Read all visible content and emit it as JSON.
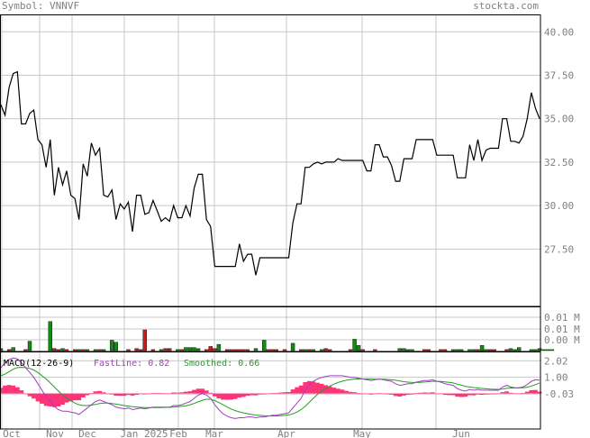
{
  "header": {
    "symbol_label": "Symbol: VNNVF",
    "site": "stockta.com"
  },
  "colors": {
    "background": "#ffffff",
    "grid": "#c8c8c8",
    "frame": "#000000",
    "text": "#808080",
    "price_line": "#000000",
    "volume_up": "#138a13",
    "volume_down": "#cc1a1a",
    "macd_hist": "#ff3377",
    "fast_line": "#a040c0",
    "smoothed_line": "#20a020"
  },
  "chart_data": [
    {
      "type": "line",
      "name": "price",
      "x_ticks": [
        "Oct",
        "Nov",
        "Dec",
        "Jan 2025",
        "Feb",
        "Mar",
        "Apr",
        "May",
        "Jun"
      ],
      "y_ticks": [
        "40.00",
        "37.50",
        "35.00",
        "32.50",
        "30.00",
        "27.50"
      ],
      "ylim": [
        24.2,
        41.0
      ],
      "grid": true,
      "values": [
        35.8,
        35.2,
        36.8,
        37.6,
        37.7,
        34.7,
        34.7,
        35.3,
        35.5,
        33.8,
        33.5,
        32.2,
        33.8,
        30.6,
        32.2,
        31.2,
        32.0,
        30.6,
        30.4,
        29.2,
        32.4,
        31.7,
        33.6,
        32.9,
        33.3,
        30.6,
        30.5,
        30.9,
        29.2,
        30.1,
        29.8,
        30.2,
        28.5,
        30.6,
        30.6,
        29.5,
        29.6,
        30.3,
        29.7,
        29.1,
        29.3,
        29.1,
        30.0,
        29.3,
        29.3,
        30.0,
        29.4,
        31.0,
        31.8,
        31.8,
        29.2,
        28.8,
        26.5,
        26.5,
        26.5,
        26.5,
        26.5,
        26.5,
        27.8,
        26.8,
        27.2,
        27.2,
        26.0,
        27.0,
        27.0,
        27.0,
        27.0,
        27.0,
        27.0,
        27.0,
        27.0,
        29.0,
        30.1,
        30.1,
        32.2,
        32.2,
        32.4,
        32.5,
        32.4,
        32.5,
        32.5,
        32.5,
        32.7,
        32.6,
        32.6,
        32.6,
        32.6,
        32.6,
        32.6,
        32.0,
        32.0,
        33.5,
        33.5,
        32.8,
        32.8,
        32.3,
        31.4,
        31.4,
        32.7,
        32.7,
        32.7,
        33.8,
        33.8,
        33.8,
        33.8,
        33.8,
        32.9,
        32.9,
        32.9,
        32.9,
        32.9,
        31.6,
        31.6,
        31.6,
        33.5,
        32.6,
        33.8,
        32.6,
        33.2,
        33.3,
        33.3,
        33.3,
        35.0,
        35.0,
        33.7,
        33.7,
        33.6,
        34.0,
        35.0,
        36.5,
        35.6,
        35.0
      ]
    },
    {
      "type": "bar",
      "name": "volume",
      "y_ticks": [
        "0.01 M",
        "0.01 M",
        "0.00 M"
      ],
      "ylim": [
        0,
        0.04
      ],
      "values": [
        0.002,
        0,
        0.001,
        0.003,
        0,
        0,
        0.001,
        0.009,
        0,
        0,
        0,
        0,
        0.028,
        0.002,
        0.001,
        0.002,
        0.001,
        0,
        0.001,
        0.001,
        0.001,
        0.001,
        0,
        0.001,
        0.001,
        0.001,
        0,
        0.01,
        0.008,
        0,
        0,
        0.001,
        0,
        0.002,
        0.001,
        0.02,
        0,
        0.001,
        0,
        0.001,
        0.002,
        0.002,
        0,
        0.001,
        0.001,
        0.003,
        0.003,
        0.003,
        0.002,
        0,
        0.001,
        0.004,
        0.002,
        0.006,
        0,
        0.001,
        0.001,
        0.001,
        0.001,
        0.001,
        0.001,
        0,
        0.002,
        0,
        0.01,
        0.001,
        0.001,
        0.001,
        0,
        0.001,
        0,
        0.007,
        0,
        0.001,
        0.001,
        0.001,
        0.001,
        0,
        0.001,
        0.002,
        0.001,
        0,
        0,
        0,
        0,
        0.001,
        0.011,
        0.005,
        0.001,
        0,
        0,
        0.001,
        0,
        0,
        0,
        0,
        0,
        0.002,
        0.002,
        0.001,
        0.001,
        0,
        0,
        0.001,
        0.001,
        0,
        0,
        0.001,
        0.001,
        0,
        0.001,
        0.001,
        0.001,
        0,
        0.001,
        0.001,
        0.001,
        0.005,
        0.001,
        0.001,
        0.001,
        0,
        0,
        0.001,
        0.002,
        0.001,
        0.003,
        0,
        0,
        0.001,
        0.001,
        0.002,
        0.001,
        0.001,
        0.001
      ],
      "up": [
        1,
        0,
        0,
        1,
        0,
        0,
        0,
        1,
        0,
        0,
        0,
        0,
        1,
        0,
        0,
        1,
        0,
        0,
        0,
        1,
        0,
        1,
        0,
        1,
        0,
        1,
        0,
        1,
        1,
        0,
        0,
        0,
        0,
        0,
        0,
        0,
        0,
        0,
        0,
        1,
        0,
        0,
        0,
        1,
        0,
        1,
        1,
        1,
        1,
        0,
        0,
        0,
        0,
        1,
        0,
        0,
        0,
        0,
        0,
        0,
        0,
        0,
        1,
        0,
        1,
        0,
        0,
        0,
        0,
        0,
        0,
        1,
        0,
        0,
        1,
        0,
        1,
        0,
        1,
        0,
        0,
        0,
        0,
        0,
        0,
        0,
        1,
        1,
        0,
        0,
        0,
        0,
        0,
        0,
        0,
        0,
        0,
        1,
        1,
        1,
        1,
        0,
        0,
        0,
        0,
        0,
        0,
        0,
        0,
        0,
        1,
        1,
        1,
        0,
        1,
        1,
        0,
        1,
        1,
        0,
        0,
        0,
        0,
        0,
        1,
        1,
        1,
        0,
        0,
        1,
        1,
        1,
        1,
        1,
        1
      ]
    },
    {
      "type": "line",
      "name": "macd",
      "title": "MACD(12-26-9)",
      "fast_label": "FastLine: 0.82",
      "smoothed_label": "Smoothed: 0.66",
      "y_ticks": [
        "2.02",
        "1.00",
        "-0.03"
      ],
      "ylim": [
        -2.2,
        2.6
      ],
      "fast": [
        1.6,
        1.9,
        2.1,
        2.2,
        2.15,
        1.9,
        1.6,
        1.3,
        1.0,
        0.6,
        0.2,
        -0.2,
        -0.5,
        -0.8,
        -1.0,
        -1.1,
        -1.1,
        -1.15,
        -1.2,
        -1.3,
        -1.1,
        -0.9,
        -0.7,
        -0.5,
        -0.4,
        -0.5,
        -0.6,
        -0.7,
        -0.85,
        -0.9,
        -0.95,
        -0.9,
        -1.0,
        -0.95,
        -0.9,
        -0.95,
        -0.9,
        -0.85,
        -0.85,
        -0.85,
        -0.85,
        -0.85,
        -0.75,
        -0.75,
        -0.7,
        -0.6,
        -0.5,
        -0.3,
        -0.1,
        0.0,
        -0.1,
        -0.3,
        -0.7,
        -1.0,
        -1.25,
        -1.4,
        -1.5,
        -1.55,
        -1.5,
        -1.5,
        -1.45,
        -1.45,
        -1.5,
        -1.45,
        -1.45,
        -1.4,
        -1.35,
        -1.35,
        -1.3,
        -1.25,
        -1.2,
        -0.9,
        -0.6,
        -0.3,
        0.2,
        0.55,
        0.75,
        0.9,
        1.0,
        1.05,
        1.1,
        1.1,
        1.1,
        1.1,
        1.05,
        1.0,
        1.0,
        0.95,
        0.9,
        0.85,
        0.8,
        0.85,
        0.9,
        0.85,
        0.8,
        0.75,
        0.6,
        0.5,
        0.55,
        0.6,
        0.6,
        0.7,
        0.75,
        0.8,
        0.8,
        0.85,
        0.75,
        0.7,
        0.6,
        0.55,
        0.5,
        0.3,
        0.2,
        0.15,
        0.25,
        0.2,
        0.25,
        0.2,
        0.2,
        0.2,
        0.2,
        0.2,
        0.4,
        0.5,
        0.4,
        0.35,
        0.35,
        0.4,
        0.55,
        0.75,
        0.85,
        0.82
      ],
      "smoothed": [
        1.1,
        1.2,
        1.35,
        1.5,
        1.6,
        1.62,
        1.6,
        1.55,
        1.45,
        1.3,
        1.1,
        0.9,
        0.65,
        0.4,
        0.15,
        -0.1,
        -0.3,
        -0.45,
        -0.6,
        -0.7,
        -0.75,
        -0.75,
        -0.72,
        -0.68,
        -0.62,
        -0.6,
        -0.6,
        -0.62,
        -0.66,
        -0.7,
        -0.75,
        -0.78,
        -0.82,
        -0.84,
        -0.86,
        -0.88,
        -0.88,
        -0.88,
        -0.88,
        -0.87,
        -0.86,
        -0.86,
        -0.84,
        -0.82,
        -0.8,
        -0.76,
        -0.7,
        -0.62,
        -0.52,
        -0.42,
        -0.36,
        -0.36,
        -0.45,
        -0.56,
        -0.7,
        -0.84,
        -0.96,
        -1.06,
        -1.14,
        -1.2,
        -1.25,
        -1.3,
        -1.34,
        -1.36,
        -1.38,
        -1.39,
        -1.39,
        -1.39,
        -1.38,
        -1.36,
        -1.33,
        -1.26,
        -1.15,
        -1.0,
        -0.8,
        -0.55,
        -0.3,
        -0.05,
        0.15,
        0.32,
        0.46,
        0.58,
        0.68,
        0.76,
        0.82,
        0.86,
        0.89,
        0.9,
        0.9,
        0.9,
        0.89,
        0.88,
        0.88,
        0.88,
        0.87,
        0.85,
        0.82,
        0.77,
        0.73,
        0.7,
        0.68,
        0.68,
        0.69,
        0.71,
        0.73,
        0.75,
        0.75,
        0.74,
        0.72,
        0.69,
        0.65,
        0.58,
        0.51,
        0.44,
        0.4,
        0.36,
        0.34,
        0.31,
        0.29,
        0.27,
        0.26,
        0.25,
        0.28,
        0.32,
        0.34,
        0.34,
        0.34,
        0.35,
        0.39,
        0.46,
        0.54,
        0.66
      ],
      "hist_scale": 0.7
    }
  ]
}
